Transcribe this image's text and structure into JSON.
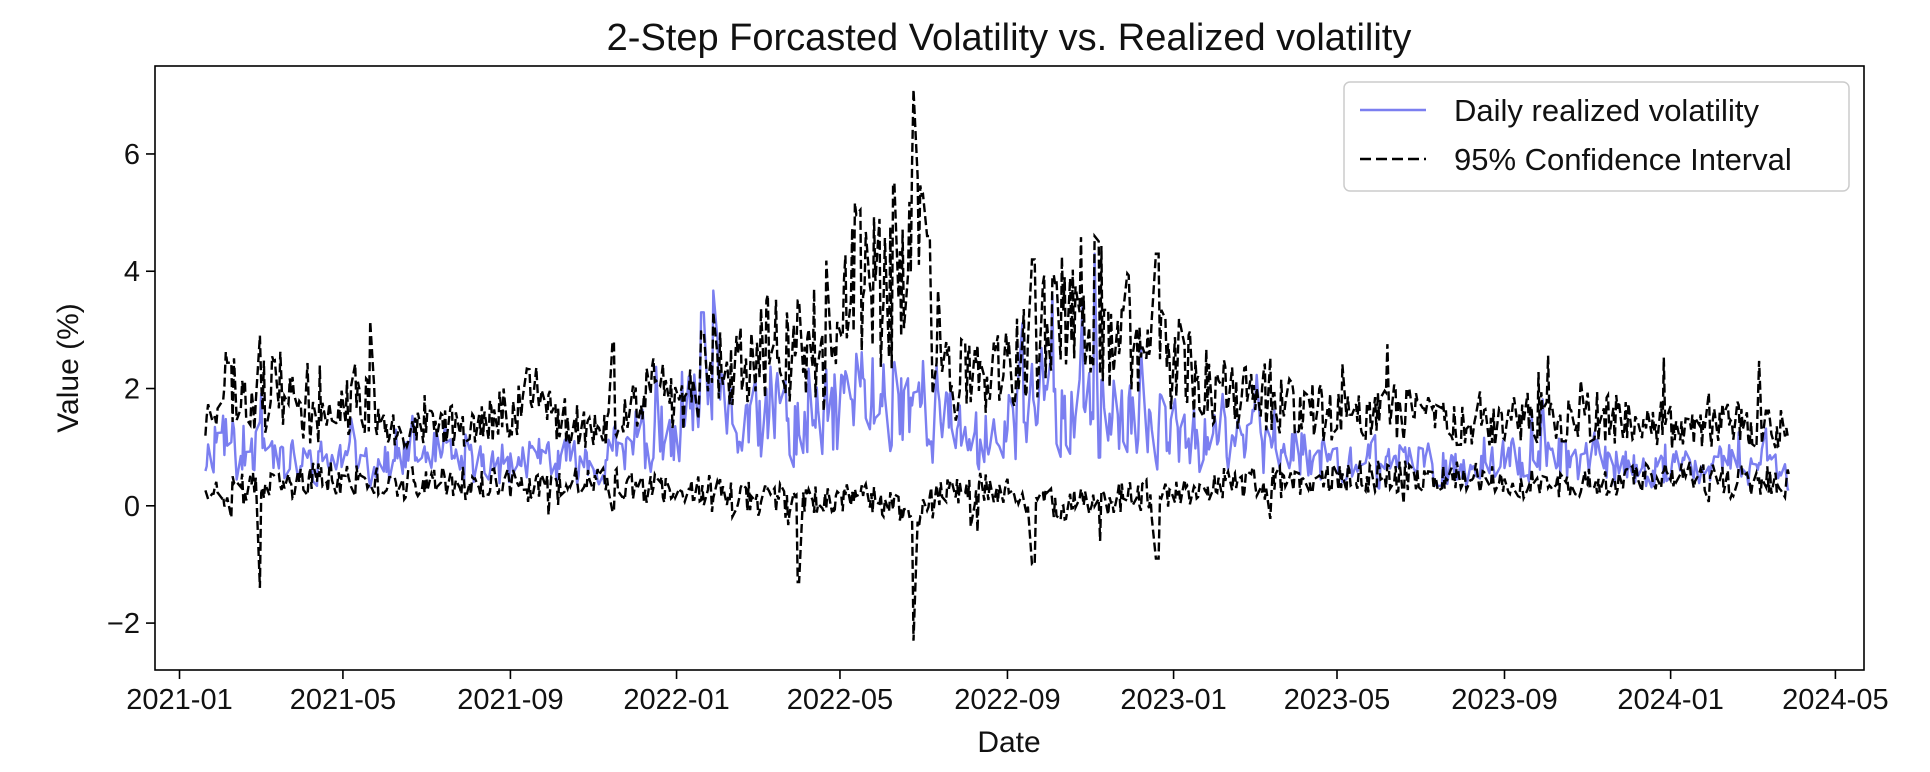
{
  "chart_data": {
    "type": "line",
    "title": "2-Step Forcasted Volatility vs. Realized volatility",
    "xlabel": "Date",
    "ylabel": "Value (%)",
    "xlim": [
      "2020-12-14",
      "2024-05-22"
    ],
    "ylim": [
      -2.8,
      7.5
    ],
    "x_ticks": [
      "2021-01",
      "2021-05",
      "2021-09",
      "2022-01",
      "2022-05",
      "2022-09",
      "2023-01",
      "2023-05",
      "2023-09",
      "2024-01",
      "2024-05"
    ],
    "y_ticks": [
      -2,
      0,
      2,
      4,
      6
    ],
    "grid": false,
    "legend_position": "top-right",
    "x_range": [
      "2021-01-20",
      "2024-03-28"
    ],
    "series": [
      {
        "name": "Daily realized volatility",
        "style": "solid",
        "color": "#7b7ff0",
        "points": [
          [
            "2021-01-20",
            0.8
          ],
          [
            "2021-02-01",
            1.4
          ],
          [
            "2021-02-15",
            0.7
          ],
          [
            "2021-03-01",
            1.3
          ],
          [
            "2021-03-15",
            0.8
          ],
          [
            "2021-04-01",
            0.7
          ],
          [
            "2021-05-01",
            0.8
          ],
          [
            "2021-06-01",
            0.7
          ],
          [
            "2021-07-01",
            0.9
          ],
          [
            "2021-08-01",
            0.7
          ],
          [
            "2021-09-01",
            0.7
          ],
          [
            "2021-10-01",
            0.8
          ],
          [
            "2021-11-01",
            0.7
          ],
          [
            "2021-12-01",
            1.1
          ],
          [
            "2022-01-01",
            1.0
          ],
          [
            "2022-01-20",
            2.0
          ],
          [
            "2022-02-15",
            1.3
          ],
          [
            "2022-03-15",
            1.5
          ],
          [
            "2022-04-15",
            1.3
          ],
          [
            "2022-05-10",
            2.0
          ],
          [
            "2022-06-01",
            1.8
          ],
          [
            "2022-06-20",
            2.0
          ],
          [
            "2022-07-15",
            1.4
          ],
          [
            "2022-08-15",
            1.1
          ],
          [
            "2022-09-15",
            1.6
          ],
          [
            "2022-10-15",
            1.6
          ],
          [
            "2022-11-01",
            2.0
          ],
          [
            "2022-11-20",
            1.4
          ],
          [
            "2022-12-15",
            1.3
          ],
          [
            "2023-01-15",
            1.2
          ],
          [
            "2023-02-15",
            1.0
          ],
          [
            "2023-03-15",
            1.1
          ],
          [
            "2023-04-15",
            0.8
          ],
          [
            "2023-05-15",
            0.7
          ],
          [
            "2023-06-15",
            0.7
          ],
          [
            "2023-07-15",
            0.7
          ],
          [
            "2023-08-15",
            0.7
          ],
          [
            "2023-09-15",
            0.8
          ],
          [
            "2023-10-15",
            0.8
          ],
          [
            "2023-11-15",
            0.7
          ],
          [
            "2023-12-15",
            0.6
          ],
          [
            "2024-01-15",
            0.6
          ],
          [
            "2024-02-15",
            0.7
          ],
          [
            "2024-03-28",
            0.6
          ]
        ]
      },
      {
        "name": "95% Confidence Interval",
        "style": "dashed",
        "color": "#000000",
        "bound": "upper",
        "points": [
          [
            "2021-01-20",
            1.4
          ],
          [
            "2021-02-01",
            2.2
          ],
          [
            "2021-02-20",
            1.8
          ],
          [
            "2021-03-15",
            1.9
          ],
          [
            "2021-04-15",
            1.4
          ],
          [
            "2021-05-15",
            1.9
          ],
          [
            "2021-06-15",
            1.2
          ],
          [
            "2021-07-15",
            1.4
          ],
          [
            "2021-08-15",
            1.4
          ],
          [
            "2021-09-15",
            1.9
          ],
          [
            "2021-10-15",
            1.4
          ],
          [
            "2021-11-15",
            1.3
          ],
          [
            "2021-12-15",
            1.9
          ],
          [
            "2022-01-15",
            1.8
          ],
          [
            "2022-02-15",
            2.3
          ],
          [
            "2022-03-15",
            2.7
          ],
          [
            "2022-04-15",
            2.3
          ],
          [
            "2022-05-10",
            3.8
          ],
          [
            "2022-06-01",
            3.4
          ],
          [
            "2022-06-25",
            4.5
          ],
          [
            "2022-07-15",
            2.4
          ],
          [
            "2022-08-15",
            2.0
          ],
          [
            "2022-09-15",
            2.5
          ],
          [
            "2022-10-15",
            3.3
          ],
          [
            "2022-11-15",
            3.2
          ],
          [
            "2022-12-15",
            2.5
          ],
          [
            "2023-01-15",
            2.3
          ],
          [
            "2023-02-15",
            1.8
          ],
          [
            "2023-03-15",
            1.9
          ],
          [
            "2023-04-15",
            1.6
          ],
          [
            "2023-05-15",
            1.5
          ],
          [
            "2023-06-15",
            1.6
          ],
          [
            "2023-07-15",
            1.5
          ],
          [
            "2023-08-15",
            1.4
          ],
          [
            "2023-09-15",
            1.5
          ],
          [
            "2023-10-15",
            1.5
          ],
          [
            "2023-11-15",
            1.5
          ],
          [
            "2023-12-15",
            1.4
          ],
          [
            "2024-01-15",
            1.3
          ],
          [
            "2024-02-15",
            1.4
          ],
          [
            "2024-03-28",
            1.3
          ]
        ]
      },
      {
        "name": "95% Confidence Interval",
        "style": "dashed",
        "color": "#000000",
        "bound": "lower",
        "points": [
          [
            "2021-01-20",
            0.4
          ],
          [
            "2021-02-01",
            0.2
          ],
          [
            "2021-02-20",
            0.3
          ],
          [
            "2021-03-15",
            0.3
          ],
          [
            "2021-04-15",
            0.5
          ],
          [
            "2021-05-15",
            0.4
          ],
          [
            "2021-06-15",
            0.4
          ],
          [
            "2021-07-15",
            0.4
          ],
          [
            "2021-08-15",
            0.4
          ],
          [
            "2021-09-15",
            0.3
          ],
          [
            "2021-10-15",
            0.4
          ],
          [
            "2021-11-15",
            0.4
          ],
          [
            "2021-12-15",
            0.3
          ],
          [
            "2022-01-15",
            0.3
          ],
          [
            "2022-02-15",
            0.2
          ],
          [
            "2022-03-15",
            0.1
          ],
          [
            "2022-04-15",
            0.1
          ],
          [
            "2022-05-10",
            0.1
          ],
          [
            "2022-06-01",
            0.1
          ],
          [
            "2022-06-25",
            -0.2
          ],
          [
            "2022-07-15",
            0.2
          ],
          [
            "2022-08-15",
            0.3
          ],
          [
            "2022-09-15",
            0.1
          ],
          [
            "2022-10-15",
            0.0
          ],
          [
            "2022-11-15",
            0.1
          ],
          [
            "2022-12-15",
            0.2
          ],
          [
            "2023-01-15",
            0.3
          ],
          [
            "2023-02-15",
            0.4
          ],
          [
            "2023-03-15",
            0.4
          ],
          [
            "2023-04-15",
            0.4
          ],
          [
            "2023-05-15",
            0.5
          ],
          [
            "2023-06-15",
            0.5
          ],
          [
            "2023-07-15",
            0.5
          ],
          [
            "2023-08-15",
            0.5
          ],
          [
            "2023-09-15",
            0.4
          ],
          [
            "2023-10-15",
            0.4
          ],
          [
            "2023-11-15",
            0.4
          ],
          [
            "2023-12-15",
            0.5
          ],
          [
            "2024-01-15",
            0.5
          ],
          [
            "2024-02-15",
            0.4
          ],
          [
            "2024-03-28",
            0.4
          ]
        ]
      }
    ],
    "peaks": [
      {
        "date": "2021-02-28",
        "upper": 2.9,
        "lower": -1.4
      },
      {
        "date": "2021-11-15",
        "upper": 2.8,
        "lower": -0.1
      },
      {
        "date": "2022-01-20",
        "realized": 3.3
      },
      {
        "date": "2022-04-01",
        "upper": 3.5,
        "lower": -1.3
      },
      {
        "date": "2022-06-10",
        "upper": 5.5
      },
      {
        "date": "2022-06-25",
        "upper": 7.1,
        "lower": -2.3
      },
      {
        "date": "2022-07-05",
        "upper": 4.6
      },
      {
        "date": "2022-09-20",
        "upper": 4.2,
        "lower": -1.0
      },
      {
        "date": "2022-11-05",
        "realized": 4.3,
        "upper": 4.6
      },
      {
        "date": "2022-12-20",
        "upper": 4.3,
        "lower": -0.9
      }
    ]
  }
}
